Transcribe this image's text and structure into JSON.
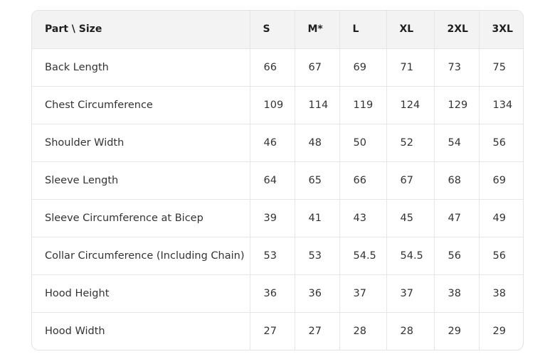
{
  "table": {
    "headers": [
      "Part \\ Size",
      "S",
      "M*",
      "L",
      "XL",
      "2XL",
      "3XL"
    ],
    "rows": [
      [
        "Back Length",
        "66",
        "67",
        "69",
        "71",
        "73",
        "75"
      ],
      [
        "Chest Circumference",
        "109",
        "114",
        "119",
        "124",
        "129",
        "134"
      ],
      [
        "Shoulder Width",
        "46",
        "48",
        "50",
        "52",
        "54",
        "56"
      ],
      [
        "Sleeve Length",
        "64",
        "65",
        "66",
        "67",
        "68",
        "69"
      ],
      [
        "Sleeve Circumference at Bicep",
        "39",
        "41",
        "43",
        "45",
        "47",
        "49"
      ],
      [
        "Collar Circumference (Including Chain)",
        "53",
        "53",
        "54.5",
        "54.5",
        "56",
        "56"
      ],
      [
        "Hood Height",
        "36",
        "36",
        "37",
        "37",
        "38",
        "38"
      ],
      [
        "Hood Width",
        "27",
        "27",
        "28",
        "28",
        "29",
        "29"
      ]
    ]
  }
}
